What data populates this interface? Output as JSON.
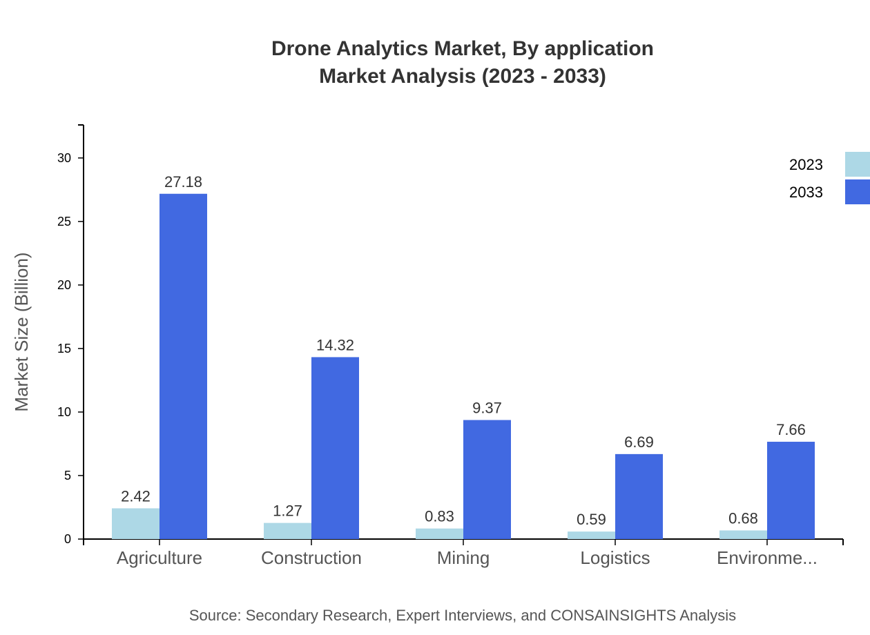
{
  "chart_data": {
    "type": "bar",
    "title": "Drone Analytics Market, By application",
    "subtitle": "Market Analysis (2023 - 2033)",
    "ylabel": "Market Size (Billion)",
    "xlabel": "",
    "categories": [
      "Agriculture",
      "Construction",
      "Mining",
      "Logistics",
      "Environme..."
    ],
    "series": [
      {
        "name": "2023",
        "color": "#add8e6",
        "values": [
          2.42,
          1.27,
          0.83,
          0.59,
          0.68
        ]
      },
      {
        "name": "2033",
        "color": "#4169e1",
        "values": [
          27.18,
          14.32,
          9.37,
          6.69,
          7.66
        ]
      }
    ],
    "ylim": [
      0,
      32.6
    ],
    "yticks": [
      0,
      5,
      10,
      15,
      20,
      25,
      30
    ],
    "grid": false,
    "legend_position": "top-right",
    "source": "Source: Secondary Research, Expert Interviews, and CONSAINSIGHTS Analysis"
  }
}
